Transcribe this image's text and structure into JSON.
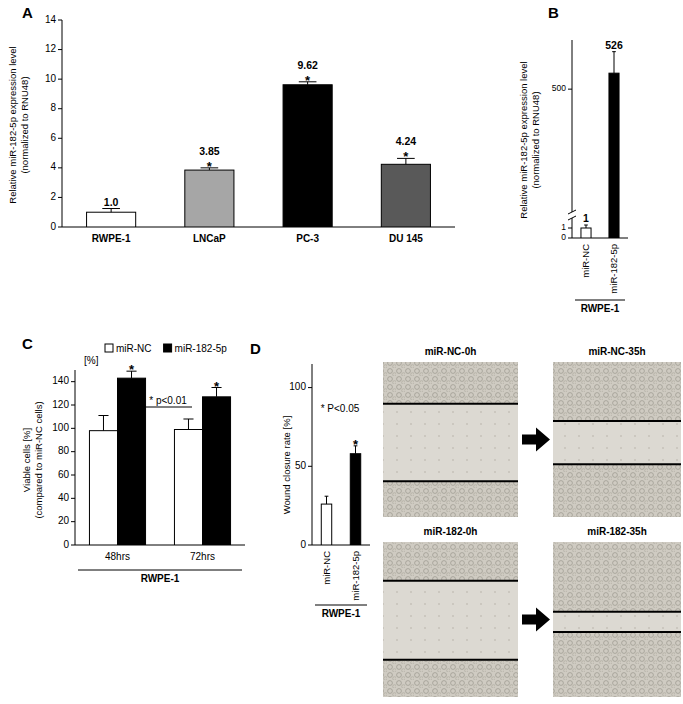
{
  "chart_data": [
    {
      "panel": "A",
      "type": "bar",
      "categories": [
        "RWPE-1",
        "LNCaP",
        "PC-3",
        "DU 145"
      ],
      "values": [
        1.0,
        3.85,
        9.62,
        4.24
      ],
      "value_labels": [
        "1.0",
        "3.85",
        "9.62",
        "4.24"
      ],
      "errors": [
        0.25,
        0.15,
        0.2,
        0.4
      ],
      "significance": [
        null,
        "*",
        "*",
        "*"
      ],
      "colors": [
        "#ffffff",
        "#a6a6a6",
        "#000000",
        "#595959"
      ],
      "y_label": [
        "Relative miR-182-5p expression level",
        "(normalized to RNU48)"
      ],
      "ylim": [
        0,
        14
      ],
      "yticks": [
        0,
        2,
        4,
        6,
        8,
        10,
        12,
        14
      ],
      "data_labels": true
    },
    {
      "panel": "B",
      "type": "bar",
      "categories": [
        "miR-NC",
        "miR-182-5p"
      ],
      "values": [
        1,
        526
      ],
      "errors": [
        0.3,
        35
      ],
      "colors": [
        "#ffffff",
        "#000000"
      ],
      "y_label": [
        "Relative miR-182-5p expression level",
        "(normalized to RNU48)"
      ],
      "group_label": "RWPE-1",
      "ylim": [
        0,
        580
      ],
      "y_break": [
        2,
        300
      ],
      "yticks": [
        0,
        1,
        500
      ],
      "data_labels": true
    },
    {
      "panel": "C",
      "type": "bar",
      "categories": [
        "48hrs",
        "72hrs"
      ],
      "series": [
        {
          "name": "miR-NC",
          "color": "#ffffff",
          "values": [
            98,
            99
          ],
          "errors": [
            13,
            9
          ]
        },
        {
          "name": "miR-182-5p",
          "color": "#000000",
          "values": [
            143,
            127
          ],
          "errors": [
            6,
            8
          ],
          "significance": [
            "*",
            "*"
          ]
        }
      ],
      "y_label": [
        "Viable cells [%]",
        "(compared to miR-NC cells)"
      ],
      "y_unit": "[%]",
      "annotation": "* p<0.01",
      "group_label": "RWPE-1",
      "ylim": [
        0,
        150
      ],
      "yticks": [
        0,
        20,
        40,
        60,
        80,
        100,
        120,
        140
      ],
      "legend": "top"
    },
    {
      "panel": "D",
      "type": "bar",
      "categories": [
        "miR-NC",
        "miR-182-5p"
      ],
      "values": [
        26,
        58
      ],
      "errors": [
        5,
        5
      ],
      "significance": [
        null,
        "*"
      ],
      "colors": [
        "#ffffff",
        "#000000"
      ],
      "y_label": [
        "Wound closure rate [%]"
      ],
      "annotation": "* P<0.05",
      "group_label": "RWPE-1",
      "ylim": [
        0,
        115
      ],
      "yticks": [
        0,
        50,
        100
      ]
    }
  ],
  "images": {
    "labels": [
      "miR-NC-0h",
      "miR-NC-35h",
      "miR-182-0h",
      "miR-182-35h"
    ]
  }
}
